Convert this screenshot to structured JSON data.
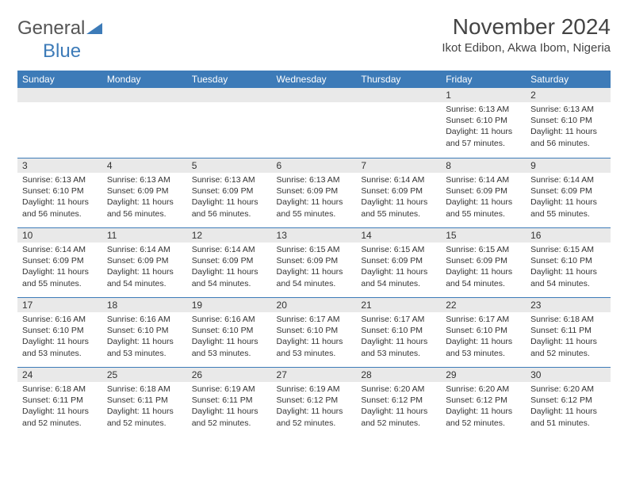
{
  "logo": {
    "text1": "General",
    "text2": "Blue"
  },
  "title": "November 2024",
  "location": "Ikot Edibon, Akwa Ibom, Nigeria",
  "colors": {
    "header_bg": "#3d7bb8",
    "header_fg": "#ffffff",
    "daynum_bg": "#e9e9e9",
    "row_border": "#3d7bb8",
    "page_bg": "#ffffff",
    "text": "#333333"
  },
  "day_headers": [
    "Sunday",
    "Monday",
    "Tuesday",
    "Wednesday",
    "Thursday",
    "Friday",
    "Saturday"
  ],
  "weeks": [
    [
      null,
      null,
      null,
      null,
      null,
      {
        "n": "1",
        "sunrise": "Sunrise: 6:13 AM",
        "sunset": "Sunset: 6:10 PM",
        "daylight": "Daylight: 11 hours and 57 minutes."
      },
      {
        "n": "2",
        "sunrise": "Sunrise: 6:13 AM",
        "sunset": "Sunset: 6:10 PM",
        "daylight": "Daylight: 11 hours and 56 minutes."
      }
    ],
    [
      {
        "n": "3",
        "sunrise": "Sunrise: 6:13 AM",
        "sunset": "Sunset: 6:10 PM",
        "daylight": "Daylight: 11 hours and 56 minutes."
      },
      {
        "n": "4",
        "sunrise": "Sunrise: 6:13 AM",
        "sunset": "Sunset: 6:09 PM",
        "daylight": "Daylight: 11 hours and 56 minutes."
      },
      {
        "n": "5",
        "sunrise": "Sunrise: 6:13 AM",
        "sunset": "Sunset: 6:09 PM",
        "daylight": "Daylight: 11 hours and 56 minutes."
      },
      {
        "n": "6",
        "sunrise": "Sunrise: 6:13 AM",
        "sunset": "Sunset: 6:09 PM",
        "daylight": "Daylight: 11 hours and 55 minutes."
      },
      {
        "n": "7",
        "sunrise": "Sunrise: 6:14 AM",
        "sunset": "Sunset: 6:09 PM",
        "daylight": "Daylight: 11 hours and 55 minutes."
      },
      {
        "n": "8",
        "sunrise": "Sunrise: 6:14 AM",
        "sunset": "Sunset: 6:09 PM",
        "daylight": "Daylight: 11 hours and 55 minutes."
      },
      {
        "n": "9",
        "sunrise": "Sunrise: 6:14 AM",
        "sunset": "Sunset: 6:09 PM",
        "daylight": "Daylight: 11 hours and 55 minutes."
      }
    ],
    [
      {
        "n": "10",
        "sunrise": "Sunrise: 6:14 AM",
        "sunset": "Sunset: 6:09 PM",
        "daylight": "Daylight: 11 hours and 55 minutes."
      },
      {
        "n": "11",
        "sunrise": "Sunrise: 6:14 AM",
        "sunset": "Sunset: 6:09 PM",
        "daylight": "Daylight: 11 hours and 54 minutes."
      },
      {
        "n": "12",
        "sunrise": "Sunrise: 6:14 AM",
        "sunset": "Sunset: 6:09 PM",
        "daylight": "Daylight: 11 hours and 54 minutes."
      },
      {
        "n": "13",
        "sunrise": "Sunrise: 6:15 AM",
        "sunset": "Sunset: 6:09 PM",
        "daylight": "Daylight: 11 hours and 54 minutes."
      },
      {
        "n": "14",
        "sunrise": "Sunrise: 6:15 AM",
        "sunset": "Sunset: 6:09 PM",
        "daylight": "Daylight: 11 hours and 54 minutes."
      },
      {
        "n": "15",
        "sunrise": "Sunrise: 6:15 AM",
        "sunset": "Sunset: 6:09 PM",
        "daylight": "Daylight: 11 hours and 54 minutes."
      },
      {
        "n": "16",
        "sunrise": "Sunrise: 6:15 AM",
        "sunset": "Sunset: 6:10 PM",
        "daylight": "Daylight: 11 hours and 54 minutes."
      }
    ],
    [
      {
        "n": "17",
        "sunrise": "Sunrise: 6:16 AM",
        "sunset": "Sunset: 6:10 PM",
        "daylight": "Daylight: 11 hours and 53 minutes."
      },
      {
        "n": "18",
        "sunrise": "Sunrise: 6:16 AM",
        "sunset": "Sunset: 6:10 PM",
        "daylight": "Daylight: 11 hours and 53 minutes."
      },
      {
        "n": "19",
        "sunrise": "Sunrise: 6:16 AM",
        "sunset": "Sunset: 6:10 PM",
        "daylight": "Daylight: 11 hours and 53 minutes."
      },
      {
        "n": "20",
        "sunrise": "Sunrise: 6:17 AM",
        "sunset": "Sunset: 6:10 PM",
        "daylight": "Daylight: 11 hours and 53 minutes."
      },
      {
        "n": "21",
        "sunrise": "Sunrise: 6:17 AM",
        "sunset": "Sunset: 6:10 PM",
        "daylight": "Daylight: 11 hours and 53 minutes."
      },
      {
        "n": "22",
        "sunrise": "Sunrise: 6:17 AM",
        "sunset": "Sunset: 6:10 PM",
        "daylight": "Daylight: 11 hours and 53 minutes."
      },
      {
        "n": "23",
        "sunrise": "Sunrise: 6:18 AM",
        "sunset": "Sunset: 6:11 PM",
        "daylight": "Daylight: 11 hours and 52 minutes."
      }
    ],
    [
      {
        "n": "24",
        "sunrise": "Sunrise: 6:18 AM",
        "sunset": "Sunset: 6:11 PM",
        "daylight": "Daylight: 11 hours and 52 minutes."
      },
      {
        "n": "25",
        "sunrise": "Sunrise: 6:18 AM",
        "sunset": "Sunset: 6:11 PM",
        "daylight": "Daylight: 11 hours and 52 minutes."
      },
      {
        "n": "26",
        "sunrise": "Sunrise: 6:19 AM",
        "sunset": "Sunset: 6:11 PM",
        "daylight": "Daylight: 11 hours and 52 minutes."
      },
      {
        "n": "27",
        "sunrise": "Sunrise: 6:19 AM",
        "sunset": "Sunset: 6:12 PM",
        "daylight": "Daylight: 11 hours and 52 minutes."
      },
      {
        "n": "28",
        "sunrise": "Sunrise: 6:20 AM",
        "sunset": "Sunset: 6:12 PM",
        "daylight": "Daylight: 11 hours and 52 minutes."
      },
      {
        "n": "29",
        "sunrise": "Sunrise: 6:20 AM",
        "sunset": "Sunset: 6:12 PM",
        "daylight": "Daylight: 11 hours and 52 minutes."
      },
      {
        "n": "30",
        "sunrise": "Sunrise: 6:20 AM",
        "sunset": "Sunset: 6:12 PM",
        "daylight": "Daylight: 11 hours and 51 minutes."
      }
    ]
  ]
}
